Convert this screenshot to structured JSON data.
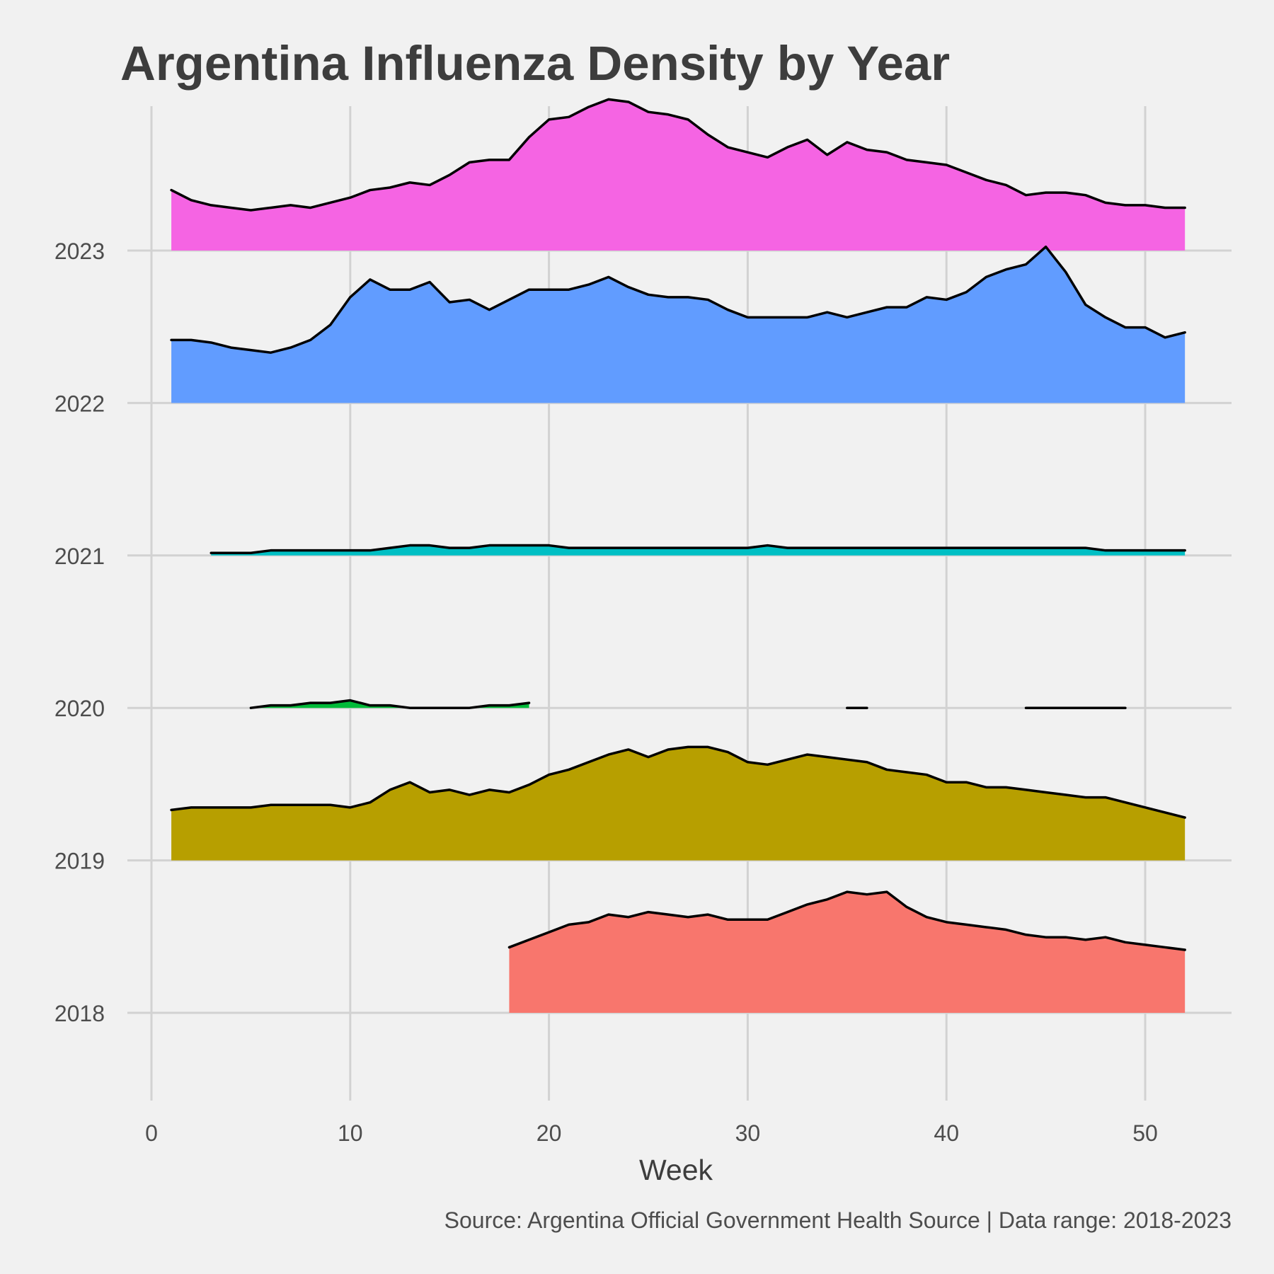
{
  "chart_data": {
    "type": "area",
    "title": "Argentina Influenza Density by Year",
    "xlabel": "Week",
    "ylabel": "",
    "caption": "Source: Argentina Official Government Health Source | Data range: 2018-2023",
    "xlim": [
      0,
      54
    ],
    "xticks": [
      0,
      10,
      20,
      30,
      40,
      50
    ],
    "grid": true,
    "series": [
      {
        "name": "2018",
        "color": "#F8766D",
        "points": [
          [
            18,
            0.26
          ],
          [
            19,
            0.29
          ],
          [
            20,
            0.32
          ],
          [
            21,
            0.35
          ],
          [
            22,
            0.36
          ],
          [
            23,
            0.39
          ],
          [
            24,
            0.38
          ],
          [
            25,
            0.4
          ],
          [
            26,
            0.39
          ],
          [
            27,
            0.38
          ],
          [
            28,
            0.39
          ],
          [
            29,
            0.37
          ],
          [
            30,
            0.37
          ],
          [
            31,
            0.37
          ],
          [
            32,
            0.4
          ],
          [
            33,
            0.43
          ],
          [
            34,
            0.45
          ],
          [
            35,
            0.48
          ],
          [
            36,
            0.47
          ],
          [
            37,
            0.48
          ],
          [
            38,
            0.42
          ],
          [
            39,
            0.38
          ],
          [
            40,
            0.36
          ],
          [
            41,
            0.35
          ],
          [
            42,
            0.34
          ],
          [
            43,
            0.33
          ],
          [
            44,
            0.31
          ],
          [
            45,
            0.3
          ],
          [
            46,
            0.3
          ],
          [
            47,
            0.29
          ],
          [
            48,
            0.3
          ],
          [
            49,
            0.28
          ],
          [
            50,
            0.27
          ],
          [
            51,
            0.26
          ],
          [
            52,
            0.25
          ]
        ]
      },
      {
        "name": "2019",
        "color": "#B79F00",
        "points": [
          [
            1,
            0.2
          ],
          [
            2,
            0.21
          ],
          [
            3,
            0.21
          ],
          [
            4,
            0.21
          ],
          [
            5,
            0.21
          ],
          [
            6,
            0.22
          ],
          [
            7,
            0.22
          ],
          [
            8,
            0.22
          ],
          [
            9,
            0.22
          ],
          [
            10,
            0.21
          ],
          [
            11,
            0.23
          ],
          [
            12,
            0.28
          ],
          [
            13,
            0.31
          ],
          [
            14,
            0.27
          ],
          [
            15,
            0.28
          ],
          [
            16,
            0.26
          ],
          [
            17,
            0.28
          ],
          [
            18,
            0.27
          ],
          [
            19,
            0.3
          ],
          [
            20,
            0.34
          ],
          [
            21,
            0.36
          ],
          [
            22,
            0.39
          ],
          [
            23,
            0.42
          ],
          [
            24,
            0.44
          ],
          [
            25,
            0.41
          ],
          [
            26,
            0.44
          ],
          [
            27,
            0.45
          ],
          [
            28,
            0.45
          ],
          [
            29,
            0.43
          ],
          [
            30,
            0.39
          ],
          [
            31,
            0.38
          ],
          [
            32,
            0.4
          ],
          [
            33,
            0.42
          ],
          [
            34,
            0.41
          ],
          [
            35,
            0.4
          ],
          [
            36,
            0.39
          ],
          [
            37,
            0.36
          ],
          [
            38,
            0.35
          ],
          [
            39,
            0.34
          ],
          [
            40,
            0.31
          ],
          [
            41,
            0.31
          ],
          [
            42,
            0.29
          ],
          [
            43,
            0.29
          ],
          [
            44,
            0.28
          ],
          [
            45,
            0.27
          ],
          [
            46,
            0.26
          ],
          [
            47,
            0.25
          ],
          [
            48,
            0.25
          ],
          [
            49,
            0.23
          ],
          [
            50,
            0.21
          ],
          [
            51,
            0.19
          ],
          [
            52,
            0.17
          ]
        ]
      },
      {
        "name": "2020",
        "color": "#00BA38",
        "segments": [
          [
            [
              5,
              0.0
            ],
            [
              6,
              0.01
            ],
            [
              7,
              0.01
            ],
            [
              8,
              0.02
            ],
            [
              9,
              0.02
            ],
            [
              10,
              0.03
            ],
            [
              11,
              0.01
            ],
            [
              12,
              0.01
            ],
            [
              13,
              0.0
            ],
            [
              14,
              0.0
            ],
            [
              15,
              0.0
            ],
            [
              16,
              0.0
            ],
            [
              17,
              0.01
            ],
            [
              18,
              0.01
            ],
            [
              19,
              0.02
            ]
          ],
          [
            [
              35,
              0.0
            ],
            [
              36,
              0.0
            ]
          ],
          [
            [
              44,
              0.0
            ],
            [
              45,
              0.0
            ],
            [
              46,
              0.0
            ],
            [
              47,
              0.0
            ],
            [
              48,
              0.0
            ],
            [
              49,
              0.0
            ]
          ]
        ]
      },
      {
        "name": "2021",
        "color": "#00BFC4",
        "points": [
          [
            3,
            0.01
          ],
          [
            4,
            0.01
          ],
          [
            5,
            0.01
          ],
          [
            6,
            0.02
          ],
          [
            7,
            0.02
          ],
          [
            8,
            0.02
          ],
          [
            9,
            0.02
          ],
          [
            10,
            0.02
          ],
          [
            11,
            0.02
          ],
          [
            12,
            0.03
          ],
          [
            13,
            0.04
          ],
          [
            14,
            0.04
          ],
          [
            15,
            0.03
          ],
          [
            16,
            0.03
          ],
          [
            17,
            0.04
          ],
          [
            18,
            0.04
          ],
          [
            19,
            0.04
          ],
          [
            20,
            0.04
          ],
          [
            21,
            0.03
          ],
          [
            22,
            0.03
          ],
          [
            23,
            0.03
          ],
          [
            24,
            0.03
          ],
          [
            25,
            0.03
          ],
          [
            26,
            0.03
          ],
          [
            27,
            0.03
          ],
          [
            28,
            0.03
          ],
          [
            29,
            0.03
          ],
          [
            30,
            0.03
          ],
          [
            31,
            0.04
          ],
          [
            32,
            0.03
          ],
          [
            33,
            0.03
          ],
          [
            34,
            0.03
          ],
          [
            35,
            0.03
          ],
          [
            36,
            0.03
          ],
          [
            37,
            0.03
          ],
          [
            38,
            0.03
          ],
          [
            39,
            0.03
          ],
          [
            40,
            0.03
          ],
          [
            41,
            0.03
          ],
          [
            42,
            0.03
          ],
          [
            43,
            0.03
          ],
          [
            44,
            0.03
          ],
          [
            45,
            0.03
          ],
          [
            46,
            0.03
          ],
          [
            47,
            0.03
          ],
          [
            48,
            0.02
          ],
          [
            49,
            0.02
          ],
          [
            50,
            0.02
          ],
          [
            51,
            0.02
          ],
          [
            52,
            0.02
          ]
        ]
      },
      {
        "name": "2022",
        "color": "#619CFF",
        "points": [
          [
            1,
            0.25
          ],
          [
            2,
            0.25
          ],
          [
            3,
            0.24
          ],
          [
            4,
            0.22
          ],
          [
            5,
            0.21
          ],
          [
            6,
            0.2
          ],
          [
            7,
            0.22
          ],
          [
            8,
            0.25
          ],
          [
            9,
            0.31
          ],
          [
            10,
            0.42
          ],
          [
            11,
            0.49
          ],
          [
            12,
            0.45
          ],
          [
            13,
            0.45
          ],
          [
            14,
            0.48
          ],
          [
            15,
            0.4
          ],
          [
            16,
            0.41
          ],
          [
            17,
            0.37
          ],
          [
            18,
            0.41
          ],
          [
            19,
            0.45
          ],
          [
            20,
            0.45
          ],
          [
            21,
            0.45
          ],
          [
            22,
            0.47
          ],
          [
            23,
            0.5
          ],
          [
            24,
            0.46
          ],
          [
            25,
            0.43
          ],
          [
            26,
            0.42
          ],
          [
            27,
            0.42
          ],
          [
            28,
            0.41
          ],
          [
            29,
            0.37
          ],
          [
            30,
            0.34
          ],
          [
            31,
            0.34
          ],
          [
            32,
            0.34
          ],
          [
            33,
            0.34
          ],
          [
            34,
            0.36
          ],
          [
            35,
            0.34
          ],
          [
            36,
            0.36
          ],
          [
            37,
            0.38
          ],
          [
            38,
            0.38
          ],
          [
            39,
            0.42
          ],
          [
            40,
            0.41
          ],
          [
            41,
            0.44
          ],
          [
            42,
            0.5
          ],
          [
            43,
            0.53
          ],
          [
            44,
            0.55
          ],
          [
            45,
            0.62
          ],
          [
            46,
            0.52
          ],
          [
            47,
            0.39
          ],
          [
            48,
            0.34
          ],
          [
            49,
            0.3
          ],
          [
            50,
            0.3
          ],
          [
            51,
            0.26
          ],
          [
            52,
            0.28
          ]
        ]
      },
      {
        "name": "2023",
        "color": "#F564E3",
        "points": [
          [
            1,
            0.24
          ],
          [
            2,
            0.2
          ],
          [
            3,
            0.18
          ],
          [
            4,
            0.17
          ],
          [
            5,
            0.16
          ],
          [
            6,
            0.17
          ],
          [
            7,
            0.18
          ],
          [
            8,
            0.17
          ],
          [
            9,
            0.19
          ],
          [
            10,
            0.21
          ],
          [
            11,
            0.24
          ],
          [
            12,
            0.25
          ],
          [
            13,
            0.27
          ],
          [
            14,
            0.26
          ],
          [
            15,
            0.3
          ],
          [
            16,
            0.35
          ],
          [
            17,
            0.36
          ],
          [
            18,
            0.36
          ],
          [
            19,
            0.45
          ],
          [
            20,
            0.52
          ],
          [
            21,
            0.53
          ],
          [
            22,
            0.57
          ],
          [
            23,
            0.6
          ],
          [
            24,
            0.59
          ],
          [
            25,
            0.55
          ],
          [
            26,
            0.54
          ],
          [
            27,
            0.52
          ],
          [
            28,
            0.46
          ],
          [
            29,
            0.41
          ],
          [
            30,
            0.39
          ],
          [
            31,
            0.37
          ],
          [
            32,
            0.41
          ],
          [
            33,
            0.44
          ],
          [
            34,
            0.38
          ],
          [
            35,
            0.43
          ],
          [
            36,
            0.4
          ],
          [
            37,
            0.39
          ],
          [
            38,
            0.36
          ],
          [
            39,
            0.35
          ],
          [
            40,
            0.34
          ],
          [
            41,
            0.31
          ],
          [
            42,
            0.28
          ],
          [
            43,
            0.26
          ],
          [
            44,
            0.22
          ],
          [
            45,
            0.23
          ],
          [
            46,
            0.23
          ],
          [
            47,
            0.22
          ],
          [
            48,
            0.19
          ],
          [
            49,
            0.18
          ],
          [
            50,
            0.18
          ],
          [
            51,
            0.17
          ],
          [
            52,
            0.17
          ]
        ]
      }
    ]
  }
}
